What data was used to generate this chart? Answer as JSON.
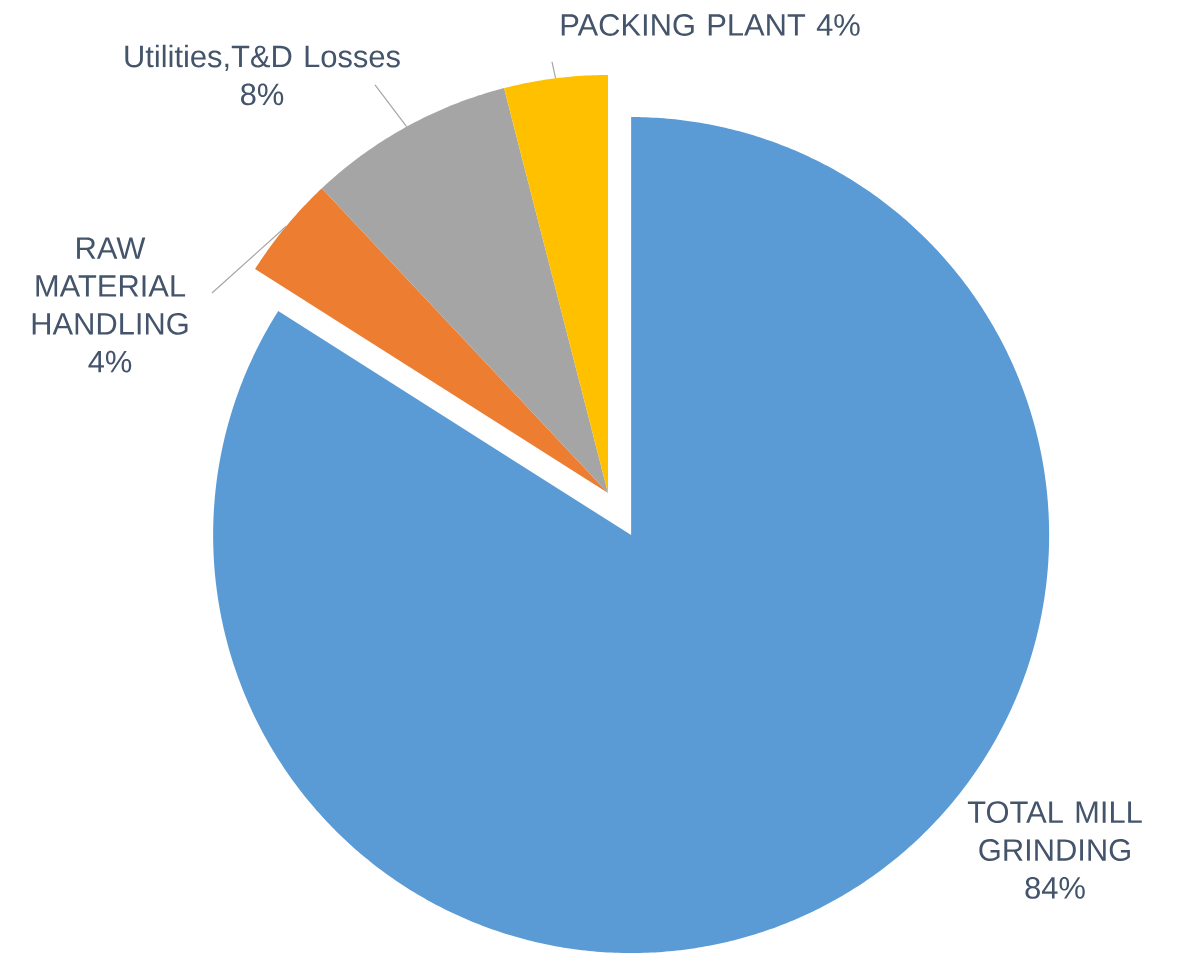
{
  "chart_data": {
    "type": "pie",
    "categories": [
      "TOTAL MILL GRINDING",
      "RAW MATERIAL HANDLING",
      "Utilities,T&D Losses",
      "PACKING PLANT"
    ],
    "values": [
      84,
      4,
      8,
      4
    ],
    "value_labels": [
      "84%",
      "4%",
      "8%",
      "4%"
    ],
    "colors": [
      "#5b9bd5",
      "#ed7d31",
      "#a5a5a5",
      "#ffc000"
    ]
  }
}
